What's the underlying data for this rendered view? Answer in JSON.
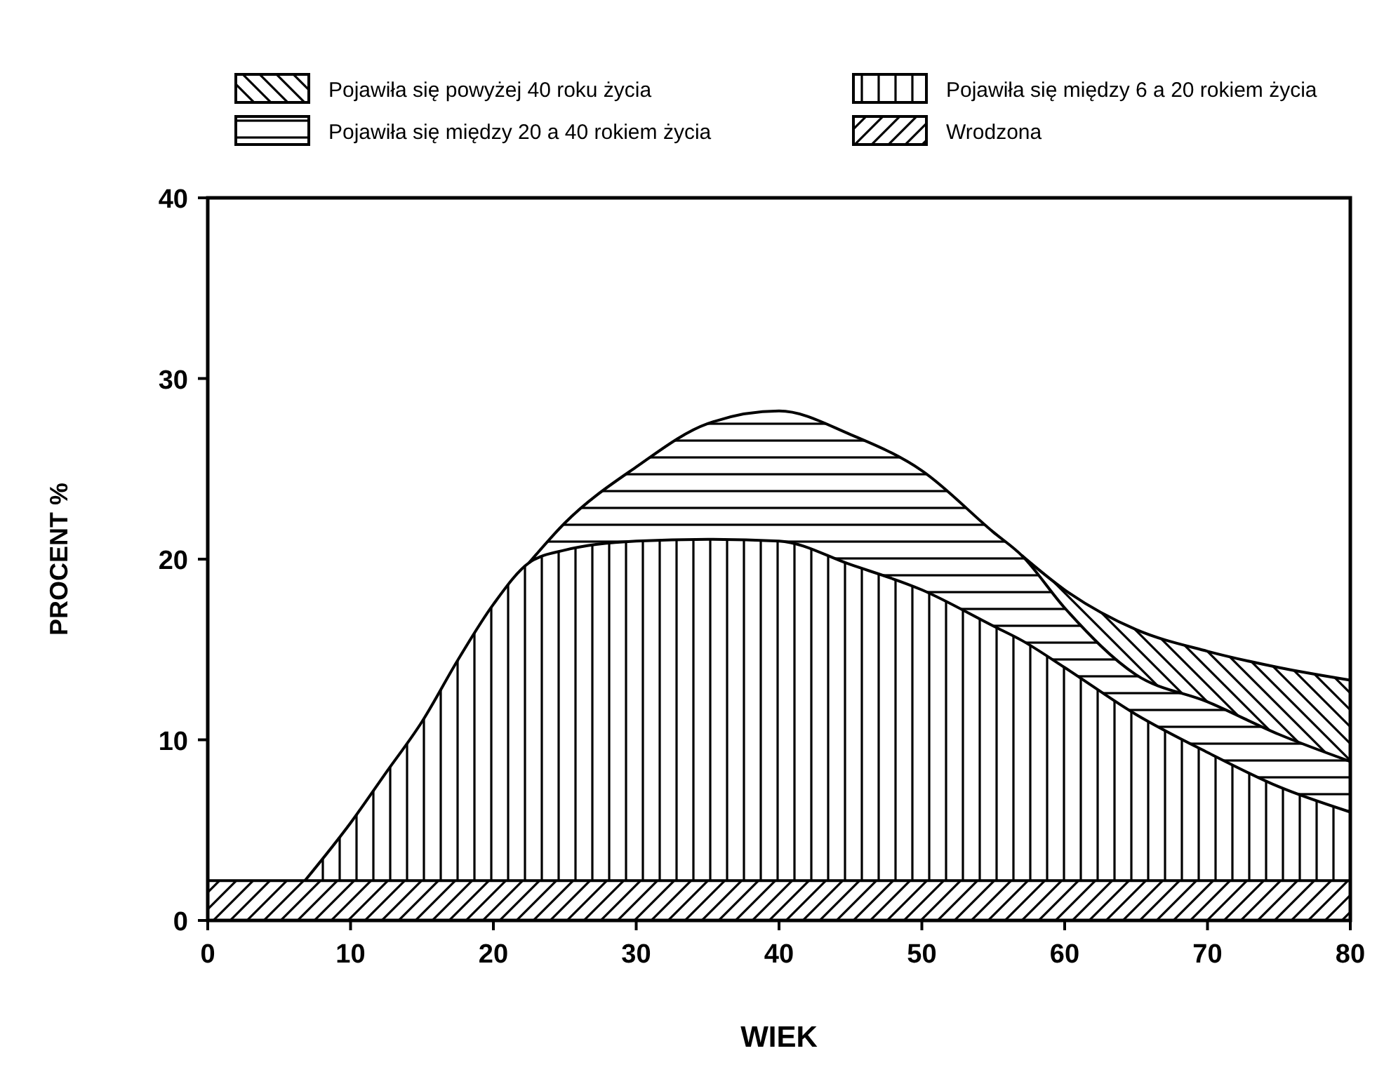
{
  "chart_data": {
    "type": "area",
    "stacked": true,
    "xlabel": "WIEK",
    "ylabel": "PROCENT %",
    "legend": "top",
    "grid": false,
    "x": [
      0,
      5,
      6.8,
      10,
      12.5,
      15,
      17.5,
      20,
      22.5,
      25,
      30,
      35,
      40,
      45,
      50,
      55,
      57,
      60,
      65,
      70,
      75,
      80
    ],
    "xlim": [
      0,
      80
    ],
    "xticks": [
      0,
      10,
      20,
      30,
      40,
      50,
      60,
      70,
      80
    ],
    "ylim": [
      0,
      40
    ],
    "yticks": [
      0,
      10,
      20,
      30,
      40
    ],
    "series": [
      {
        "name": "Wrodzona",
        "color": "#000000",
        "values": [
          2.2,
          2.2,
          2.2,
          2.2,
          2.2,
          2.2,
          2.2,
          2.2,
          2.2,
          2.2,
          2.2,
          2.2,
          2.2,
          2.2,
          2.2,
          2.2,
          2.2,
          2.2,
          2.2,
          2.2,
          2.2,
          2.2
        ]
      },
      {
        "name": "Pojawiła się między 6 a 20 rokiem życia",
        "color": "#000000",
        "values": [
          null,
          null,
          0,
          3.2,
          6.0,
          8.8,
          12.2,
          15.3,
          17.6,
          18.3,
          18.8,
          18.9,
          18.8,
          17.5,
          16.1,
          14.1,
          13.3,
          11.8,
          9.2,
          7.1,
          5.2,
          3.8
        ]
      },
      {
        "name": "Pojawiła się między 20 a 40 rokiem życia",
        "color": "#000000",
        "values": [
          null,
          null,
          null,
          null,
          null,
          null,
          null,
          null,
          0,
          1.5,
          4.1,
          6.4,
          7.2,
          7.2,
          6.6,
          5.2,
          4.7,
          3.3,
          2.2,
          2.8,
          2.9,
          2.8
        ]
      },
      {
        "name": "Pojawiła się powyżej 40 roku życia",
        "color": "#000000",
        "values": [
          null,
          null,
          null,
          null,
          null,
          null,
          null,
          null,
          null,
          null,
          null,
          null,
          null,
          null,
          null,
          null,
          0,
          1.0,
          2.5,
          2.8,
          3.7,
          4.5
        ]
      }
    ]
  }
}
